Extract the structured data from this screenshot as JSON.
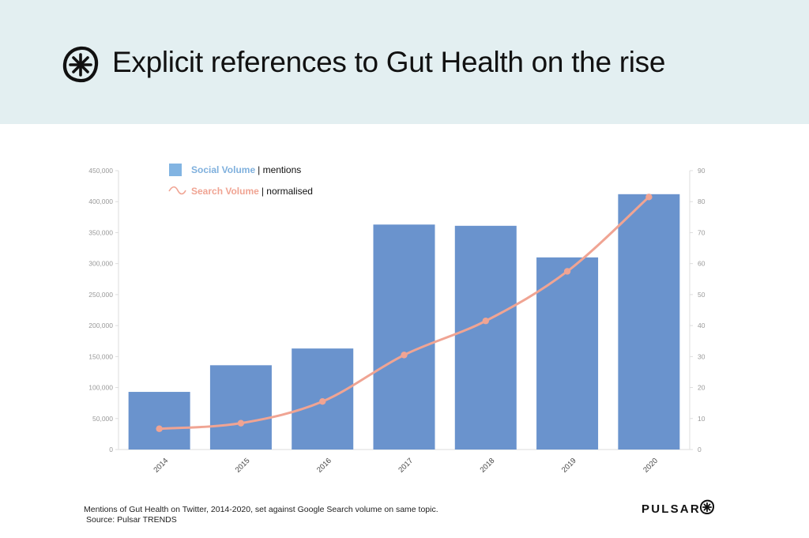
{
  "header": {
    "title": "Explicit references to Gut Health on the rise",
    "logo_icon": "pulsar-asterisk-icon"
  },
  "colors": {
    "header_bg": "#e3eff1",
    "bar": "#6a93cd",
    "line": "#f0a493",
    "legend_bar_text": "#7fb0dd",
    "legend_line_text": "#f0a493",
    "axis_text": "#999999"
  },
  "chart_data": {
    "type": "bar",
    "categories": [
      "2014",
      "2015",
      "2016",
      "2017",
      "2018",
      "2019",
      "2020"
    ],
    "series": [
      {
        "name": "Social Volume",
        "unit": "mentions",
        "type": "bar",
        "axis": "left",
        "values": [
          93000,
          136000,
          163000,
          363000,
          361000,
          310000,
          412000
        ]
      },
      {
        "name": "Search Volume",
        "unit": "normalised",
        "type": "line",
        "axis": "right",
        "smooth": true,
        "values": [
          6.7,
          8.5,
          15.5,
          30.5,
          41.5,
          57.5,
          81.5
        ]
      }
    ],
    "y_left": {
      "ylim": [
        0,
        450000
      ],
      "ticks": [
        "0",
        "50,000",
        "100,000",
        "150,000",
        "200,000",
        "250,000",
        "300,000",
        "350,000",
        "400,000",
        "450,000"
      ]
    },
    "y_right": {
      "ylim": [
        0,
        90
      ],
      "ticks": [
        "0",
        "10",
        "20",
        "30",
        "40",
        "50",
        "60",
        "70",
        "80",
        "90"
      ]
    },
    "legend": [
      {
        "name": "Social Volume",
        "suffix": "| mentions",
        "marker": "square"
      },
      {
        "name": "Search Volume",
        "suffix": "| normalised",
        "marker": "wave"
      }
    ],
    "legend_position": "top-left",
    "grid": false
  },
  "footer": {
    "caption": "Mentions of Gut Health on Twitter, 2014-2020, set against Google Search volume on same topic.",
    "source": "Source: Pulsar TRENDS",
    "brand": "PULSAR",
    "brand_icon": "pulsar-asterisk-icon"
  }
}
